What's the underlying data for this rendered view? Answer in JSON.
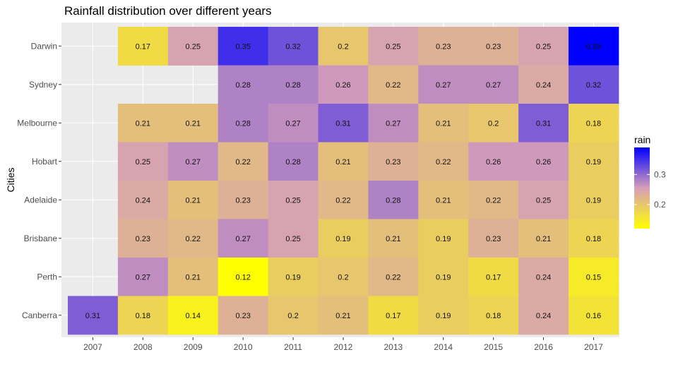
{
  "chart_data": {
    "type": "heatmap",
    "title": "Rainfall distribution over different years",
    "xlabel": "",
    "ylabel": "Cities",
    "x": [
      "2007",
      "2008",
      "2009",
      "2010",
      "2011",
      "2012",
      "2013",
      "2014",
      "2015",
      "2016",
      "2017"
    ],
    "y": [
      "Darwin",
      "Sydney",
      "Melbourne",
      "Hobart",
      "Adelaide",
      "Brisbane",
      "Perth",
      "Canberra"
    ],
    "values": [
      [
        null,
        0.17,
        0.25,
        0.35,
        0.32,
        0.2,
        0.25,
        0.23,
        0.23,
        0.25,
        0.39
      ],
      [
        null,
        null,
        null,
        0.28,
        0.28,
        0.26,
        0.22,
        0.27,
        0.27,
        0.24,
        0.32
      ],
      [
        null,
        0.21,
        0.21,
        0.28,
        0.27,
        0.31,
        0.27,
        0.21,
        0.2,
        0.31,
        0.18
      ],
      [
        null,
        0.25,
        0.27,
        0.22,
        0.28,
        0.21,
        0.23,
        0.22,
        0.26,
        0.26,
        0.19
      ],
      [
        null,
        0.24,
        0.21,
        0.23,
        0.25,
        0.22,
        0.28,
        0.21,
        0.22,
        0.25,
        0.19
      ],
      [
        null,
        0.23,
        0.22,
        0.27,
        0.25,
        0.19,
        0.21,
        0.19,
        0.23,
        0.21,
        0.18
      ],
      [
        null,
        0.27,
        0.21,
        0.12,
        0.19,
        0.2,
        0.22,
        0.19,
        0.17,
        0.24,
        0.15
      ],
      [
        0.31,
        0.18,
        0.14,
        0.23,
        0.2,
        0.21,
        0.17,
        0.19,
        0.18,
        0.24,
        0.16
      ]
    ],
    "color_scale": {
      "low": "#ffff00",
      "mid": "#d79fb8",
      "high": "#0000ff",
      "range": [
        0.12,
        0.39
      ]
    },
    "legend": {
      "title": "rain",
      "breaks": [
        "0.2",
        "0.3"
      ],
      "position": "right"
    },
    "panel_background": "#ebebeb",
    "grid": true
  }
}
